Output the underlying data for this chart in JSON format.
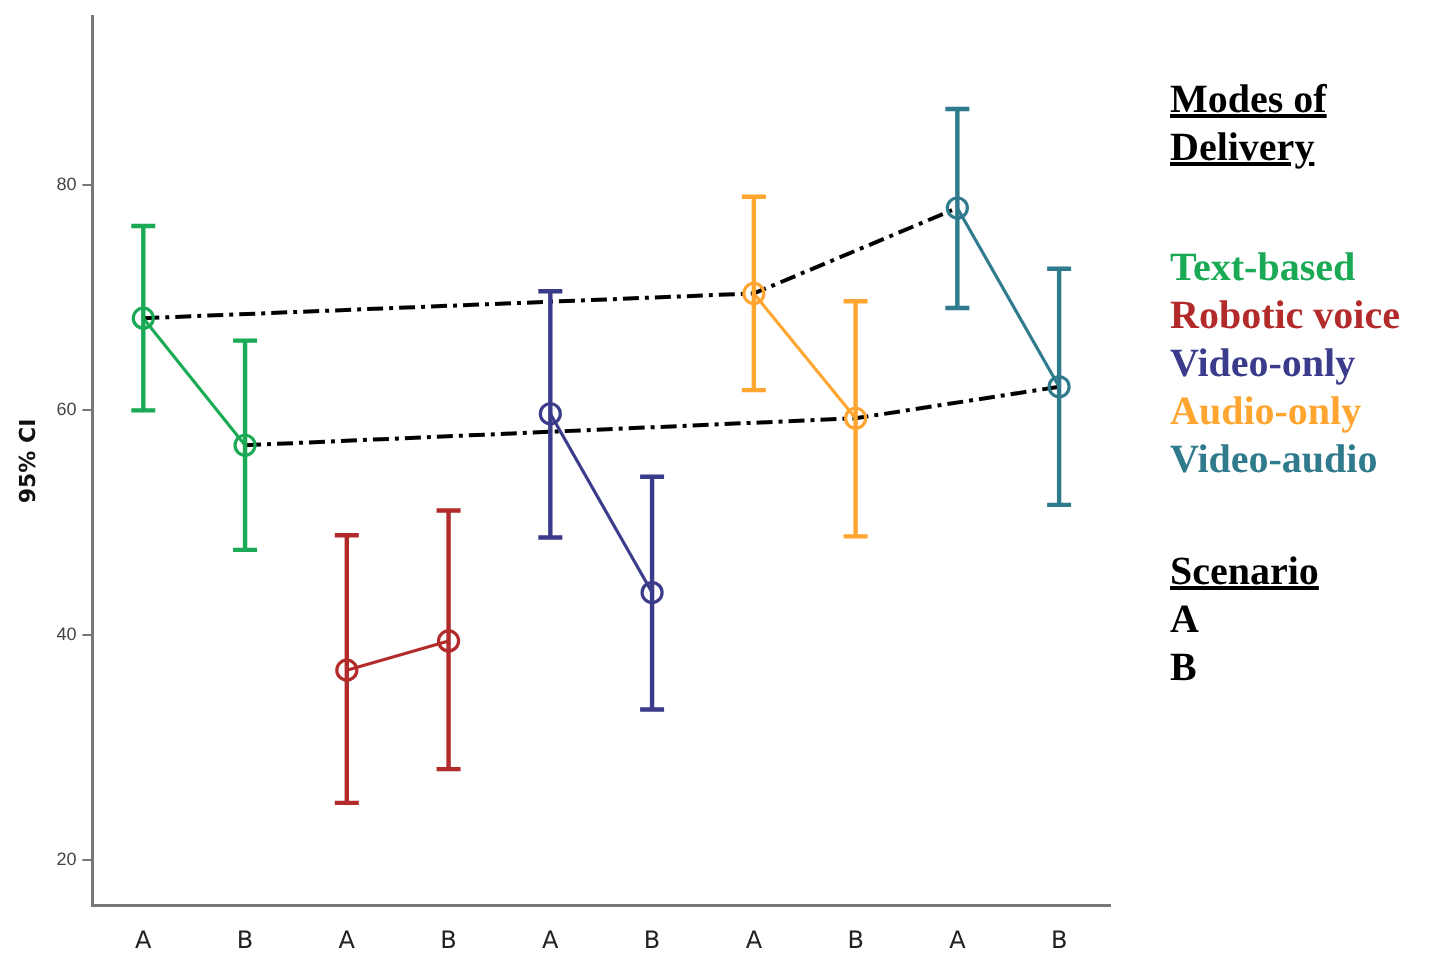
{
  "chart_data": {
    "type": "line",
    "ylabel": "95% CI",
    "legend_title": "Modes of Delivery",
    "legend": "right",
    "grid": false,
    "marker": "circle",
    "line_style": "solid",
    "categories": [
      "A",
      "B",
      "A",
      "B",
      "A",
      "B",
      "A",
      "B",
      "A",
      "B"
    ],
    "ylim": [
      16,
      95
    ],
    "yticks": [
      20,
      40,
      60,
      80
    ],
    "series": [
      {
        "name": "Text-based",
        "color": "#1aaa55",
        "values": [
          68.2,
          56.9,
          null,
          null,
          null,
          null,
          null,
          null,
          null,
          null
        ],
        "errors": [
          [
            60.0,
            76.4
          ],
          [
            47.6,
            66.2
          ],
          null,
          null,
          null,
          null,
          null,
          null,
          null,
          null
        ]
      },
      {
        "name": "Robotic voice",
        "color": "#b22a2a",
        "values": [
          null,
          null,
          36.9,
          39.5,
          null,
          null,
          null,
          null,
          null,
          null
        ],
        "errors": [
          null,
          null,
          [
            25.1,
            48.9
          ],
          [
            28.1,
            51.1
          ],
          null,
          null,
          null,
          null,
          null,
          null
        ]
      },
      {
        "name": "Video-only",
        "color": "#3b3b8c",
        "values": [
          null,
          null,
          null,
          null,
          59.7,
          43.8,
          null,
          null,
          null,
          null
        ],
        "errors": [
          null,
          null,
          null,
          null,
          [
            48.7,
            70.6
          ],
          [
            33.4,
            54.1
          ],
          null,
          null,
          null,
          null
        ]
      },
      {
        "name": "Audio-only",
        "color": "#ffa530",
        "values": [
          null,
          null,
          null,
          null,
          null,
          null,
          70.4,
          59.3,
          null,
          null
        ],
        "errors": [
          null,
          null,
          null,
          null,
          null,
          null,
          [
            61.8,
            79.0
          ],
          [
            48.8,
            69.7
          ],
          null,
          null
        ]
      },
      {
        "name": "Video-audio",
        "color": "#2f7a8c",
        "values": [
          null,
          null,
          null,
          null,
          null,
          null,
          null,
          null,
          78.0,
          62.1
        ],
        "errors": [
          null,
          null,
          null,
          null,
          null,
          null,
          null,
          null,
          [
            69.1,
            86.8
          ],
          [
            51.6,
            72.6
          ]
        ]
      },
      {
        "color": "#000000",
        "marker": "none",
        "line_style": "dashed",
        "values": [
          68.2,
          null,
          null,
          null,
          null,
          null,
          70.4,
          null,
          78.0,
          null
        ]
      },
      {
        "color": "#000000",
        "marker": "none",
        "line_style": "dashed",
        "values": [
          null,
          56.9,
          null,
          null,
          null,
          null,
          null,
          59.3,
          null,
          62.1
        ]
      }
    ],
    "annotations": [
      "Scenario",
      "A",
      "B"
    ]
  }
}
